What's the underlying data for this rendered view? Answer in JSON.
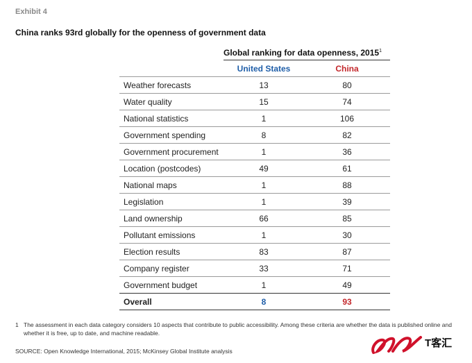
{
  "exhibit_label": "Exhibit 4",
  "title": "China ranks 93rd globally for the openness of government data",
  "chart_data": {
    "type": "table",
    "group_header": "Global ranking for data openness, 2015",
    "group_header_note": "1",
    "columns": [
      "United States",
      "China"
    ],
    "column_colors": [
      "#1f5ea8",
      "#c3272b"
    ],
    "rows": [
      {
        "category": "Weather forecasts",
        "us": "13",
        "cn": "80"
      },
      {
        "category": "Water quality",
        "us": "15",
        "cn": "74"
      },
      {
        "category": "National statistics",
        "us": "1",
        "cn": "106"
      },
      {
        "category": "Government spending",
        "us": "8",
        "cn": "82"
      },
      {
        "category": "Government procurement",
        "us": "1",
        "cn": "36"
      },
      {
        "category": "Location (postcodes)",
        "us": "49",
        "cn": "61"
      },
      {
        "category": "National maps",
        "us": "1",
        "cn": "88"
      },
      {
        "category": "Legislation",
        "us": "1",
        "cn": "39"
      },
      {
        "category": "Land ownership",
        "us": "66",
        "cn": "85"
      },
      {
        "category": "Pollutant emissions",
        "us": "1",
        "cn": "30"
      },
      {
        "category": "Election results",
        "us": "83",
        "cn": "87"
      },
      {
        "category": "Company register",
        "us": "33",
        "cn": "71"
      },
      {
        "category": "Government budget",
        "us": "1",
        "cn": "49"
      }
    ],
    "overall": {
      "category": "Overall",
      "us": "8",
      "cn": "93"
    }
  },
  "footnote": {
    "number": "1",
    "text": "The assessment in each data category considers 10 aspects that contribute to public accessibility. Among these criteria are whether the data is published online and whether it is free, up to date, and machine readable."
  },
  "source": "SOURCE: Open Knowledge International, 2015; McKinsey Global Institute analysis",
  "watermark": {
    "text": "T客汇",
    "color": "#d0112b"
  }
}
